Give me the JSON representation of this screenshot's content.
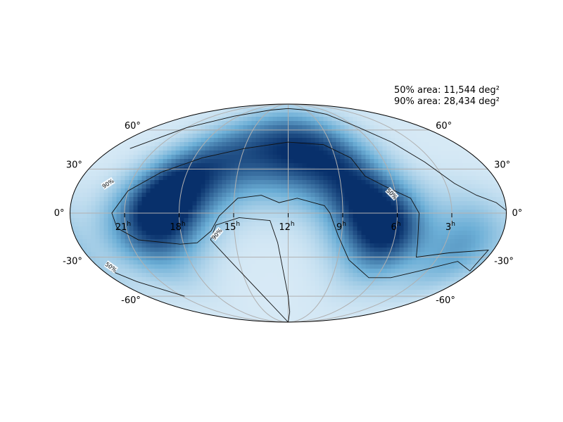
{
  "chart_data": {
    "type": "heatmap",
    "projection": "mollweide",
    "colormap": "Blues",
    "colors": {
      "low": "#f7fbff",
      "high": "#08306b",
      "grid": "#b0b0b0",
      "contour": "#111111"
    },
    "grid": true,
    "annotations": {
      "area50": "50% area: 11,544 deg²",
      "area90": "90% area: 28,434 deg²"
    },
    "ra_ticks": [
      {
        "ra_hours": 21,
        "label": "21",
        "sup": "h"
      },
      {
        "ra_hours": 18,
        "label": "18",
        "sup": "h"
      },
      {
        "ra_hours": 15,
        "label": "15",
        "sup": "h"
      },
      {
        "ra_hours": 12,
        "label": "12",
        "sup": "h"
      },
      {
        "ra_hours": 9,
        "label": "9",
        "sup": "h"
      },
      {
        "ra_hours": 6,
        "label": "6",
        "sup": "h"
      },
      {
        "ra_hours": 3,
        "label": "3",
        "sup": "h"
      }
    ],
    "dec_ticks": [
      {
        "dec": 60,
        "label": "60°"
      },
      {
        "dec": 30,
        "label": "30°"
      },
      {
        "dec": 0,
        "label": "0°"
      },
      {
        "dec": -30,
        "label": "-30°"
      },
      {
        "dec": -60,
        "label": "-60°"
      }
    ],
    "contour_levels": [
      {
        "level": 50,
        "label": "50%"
      },
      {
        "level": 90,
        "label": "90%"
      }
    ],
    "probability_peaks": [
      {
        "ra_hours": 18.7,
        "dec": 6,
        "weight": 1.0
      },
      {
        "ra_hours": 16.5,
        "dec": 30,
        "weight": 0.55
      },
      {
        "ra_hours": 13.5,
        "dec": 42,
        "weight": 0.5
      },
      {
        "ra_hours": 11.0,
        "dec": 40,
        "weight": 0.5
      },
      {
        "ra_hours": 9.0,
        "dec": 35,
        "weight": 0.4
      },
      {
        "ra_hours": 8.0,
        "dec": 5,
        "weight": 0.6
      },
      {
        "ra_hours": 6.3,
        "dec": -12,
        "weight": 0.8
      },
      {
        "ra_hours": 2.0,
        "dec": -22,
        "weight": 0.45
      },
      {
        "ra_hours": 20.5,
        "dec": -15,
        "weight": 0.45
      }
    ],
    "contours": {
      "c50_a": [
        [
          18.2,
          -21
        ],
        [
          20.5,
          -18
        ],
        [
          21.5,
          -10
        ],
        [
          21.7,
          0
        ],
        [
          21.0,
          15
        ],
        [
          19.5,
          28
        ],
        [
          17.5,
          38
        ],
        [
          15.0,
          45
        ],
        [
          12.0,
          50
        ],
        [
          9.5,
          48
        ],
        [
          8.0,
          38
        ],
        [
          7.5,
          25
        ],
        [
          6.5,
          18
        ],
        [
          5.2,
          10
        ],
        [
          4.8,
          0
        ],
        [
          4.6,
          -20
        ],
        [
          4.3,
          -30
        ],
        [
          2.5,
          -27
        ],
        [
          0.3,
          -25
        ],
        [
          0.2,
          -40
        ],
        [
          1.6,
          -33
        ],
        [
          3.5,
          -40
        ],
        [
          5.0,
          -45
        ],
        [
          6.5,
          -45
        ],
        [
          8.3,
          -32
        ],
        [
          9.2,
          -15
        ],
        [
          9.7,
          0
        ],
        [
          10.0,
          5
        ],
        [
          11.5,
          10
        ],
        [
          12.5,
          7
        ],
        [
          13.5,
          12
        ],
        [
          14.8,
          10
        ],
        [
          15.8,
          -2
        ],
        [
          16.3,
          -12
        ],
        [
          17.2,
          -20
        ],
        [
          18.2,
          -21
        ]
      ],
      "c90_a": [
        [
          15.7,
          -30
        ],
        [
          16.4,
          -18
        ],
        [
          16.0,
          -8
        ],
        [
          14.7,
          -3
        ],
        [
          13.0,
          -5
        ],
        [
          12.6,
          -20
        ],
        [
          12.0,
          -60
        ],
        [
          11.8,
          -75
        ],
        [
          13.5,
          -90
        ],
        [
          15.7,
          -30
        ]
      ],
      "c90_b": [
        [
          22.8,
          45
        ],
        [
          21.0,
          62
        ],
        [
          18.5,
          73
        ],
        [
          15.0,
          80
        ],
        [
          12.0,
          82
        ],
        [
          9.0,
          80
        ],
        [
          7.0,
          75
        ],
        [
          5.8,
          63
        ],
        [
          4.5,
          50
        ],
        [
          3.5,
          35
        ],
        [
          2.5,
          20
        ],
        [
          1.5,
          12
        ],
        [
          0.5,
          7
        ],
        [
          0.02,
          2
        ]
      ],
      "c50_b": [
        [
          23.5,
          -40
        ],
        [
          22.7,
          -48
        ],
        [
          21.6,
          -55
        ],
        [
          20.8,
          -60
        ]
      ]
    }
  }
}
